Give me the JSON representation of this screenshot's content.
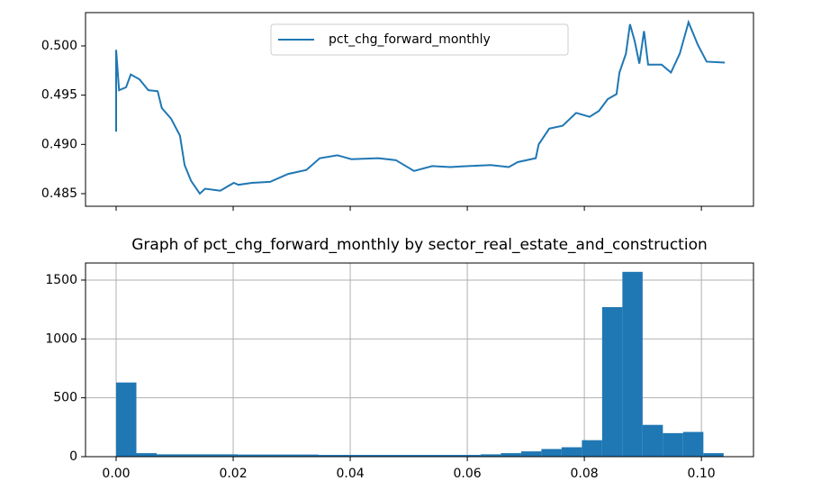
{
  "chart_data": [
    {
      "type": "line",
      "x": [
        0,
        0,
        0.0005,
        0.0017,
        0.0025,
        0.004,
        0.0055,
        0.0071,
        0.0078,
        0.0094,
        0.0109,
        0.0117,
        0.0128,
        0.0143,
        0.0152,
        0.0178,
        0.0201,
        0.0209,
        0.0232,
        0.0263,
        0.0294,
        0.0325,
        0.0348,
        0.0378,
        0.0402,
        0.0448,
        0.0478,
        0.0509,
        0.054,
        0.0571,
        0.0602,
        0.064,
        0.0671,
        0.0686,
        0.0717,
        0.0722,
        0.074,
        0.0763,
        0.0786,
        0.0809,
        0.0825,
        0.084,
        0.0855,
        0.086,
        0.0871,
        0.0878,
        0.0886,
        0.0894,
        0.0902,
        0.0909,
        0.0932,
        0.0948,
        0.0963,
        0.0978,
        0.0994,
        0.1009,
        0.104
      ],
      "series": [
        {
          "name": "pct_chg_forward_monthly",
          "color": "#1f77b4",
          "values": [
            0.4913,
            0.4996,
            0.4955,
            0.4958,
            0.4971,
            0.4966,
            0.4955,
            0.4954,
            0.4937,
            0.4926,
            0.4909,
            0.4879,
            0.4863,
            0.485,
            0.4855,
            0.4853,
            0.4861,
            0.4859,
            0.4861,
            0.4862,
            0.487,
            0.4874,
            0.4886,
            0.4889,
            0.4885,
            0.4886,
            0.4884,
            0.4873,
            0.4878,
            0.4877,
            0.4878,
            0.4879,
            0.4877,
            0.4882,
            0.4886,
            0.49,
            0.4916,
            0.4919,
            0.4932,
            0.4928,
            0.4934,
            0.4946,
            0.4951,
            0.4973,
            0.4992,
            0.5022,
            0.5005,
            0.4982,
            0.5015,
            0.4981,
            0.4981,
            0.4973,
            0.4992,
            0.5024,
            0.5001,
            0.4984,
            0.4983
          ]
        }
      ],
      "xlim": [
        -0.00523,
        0.1089
      ],
      "xticks": [
        0,
        0.02,
        0.04,
        0.06,
        0.08,
        0.1
      ],
      "ylim": [
        0.48372,
        0.50338
      ],
      "yticks": [
        0.485,
        {
          "value": 0.49,
          "label": "0.490"
        },
        0.495,
        {
          "value": 0.5,
          "label": "0.500"
        }
      ],
      "legend": "upper center",
      "grid": false
    },
    {
      "type": "histogram",
      "title": "Graph of pct_chg_forward_monthly by sector_real_estate_and_construction",
      "bins": [
        0,
        0.00346,
        0.00692,
        0.01038,
        0.01384,
        0.0173,
        0.02076,
        0.02422,
        0.02768,
        0.03114,
        0.0346,
        0.03806,
        0.04152,
        0.04498,
        0.04844,
        0.0519,
        0.05536,
        0.05882,
        0.06228,
        0.06574,
        0.0692,
        0.07266,
        0.07612,
        0.07958,
        0.08304,
        0.0865,
        0.08996,
        0.09342,
        0.09688,
        0.10034,
        0.1038
      ],
      "values": [
        630,
        30,
        20,
        20,
        20,
        20,
        18,
        18,
        18,
        18,
        15,
        15,
        15,
        15,
        15,
        15,
        15,
        15,
        20,
        30,
        45,
        65,
        80,
        140,
        1270,
        1570,
        270,
        200,
        210,
        30
      ],
      "color": "#1f77b4",
      "xlim": [
        -0.00523,
        0.1089
      ],
      "xticks": [
        {
          "value": 0,
          "label": "0.00"
        },
        {
          "value": 0.02,
          "label": "0.02"
        },
        {
          "value": 0.04,
          "label": "0.04"
        },
        {
          "value": 0.06,
          "label": "0.06"
        },
        {
          "value": 0.08,
          "label": "0.08"
        },
        {
          "value": 0.1,
          "label": "0.10"
        }
      ],
      "ylim": [
        0,
        1645
      ],
      "yticks": [
        0,
        500,
        1000,
        1500
      ],
      "grid": true
    }
  ]
}
